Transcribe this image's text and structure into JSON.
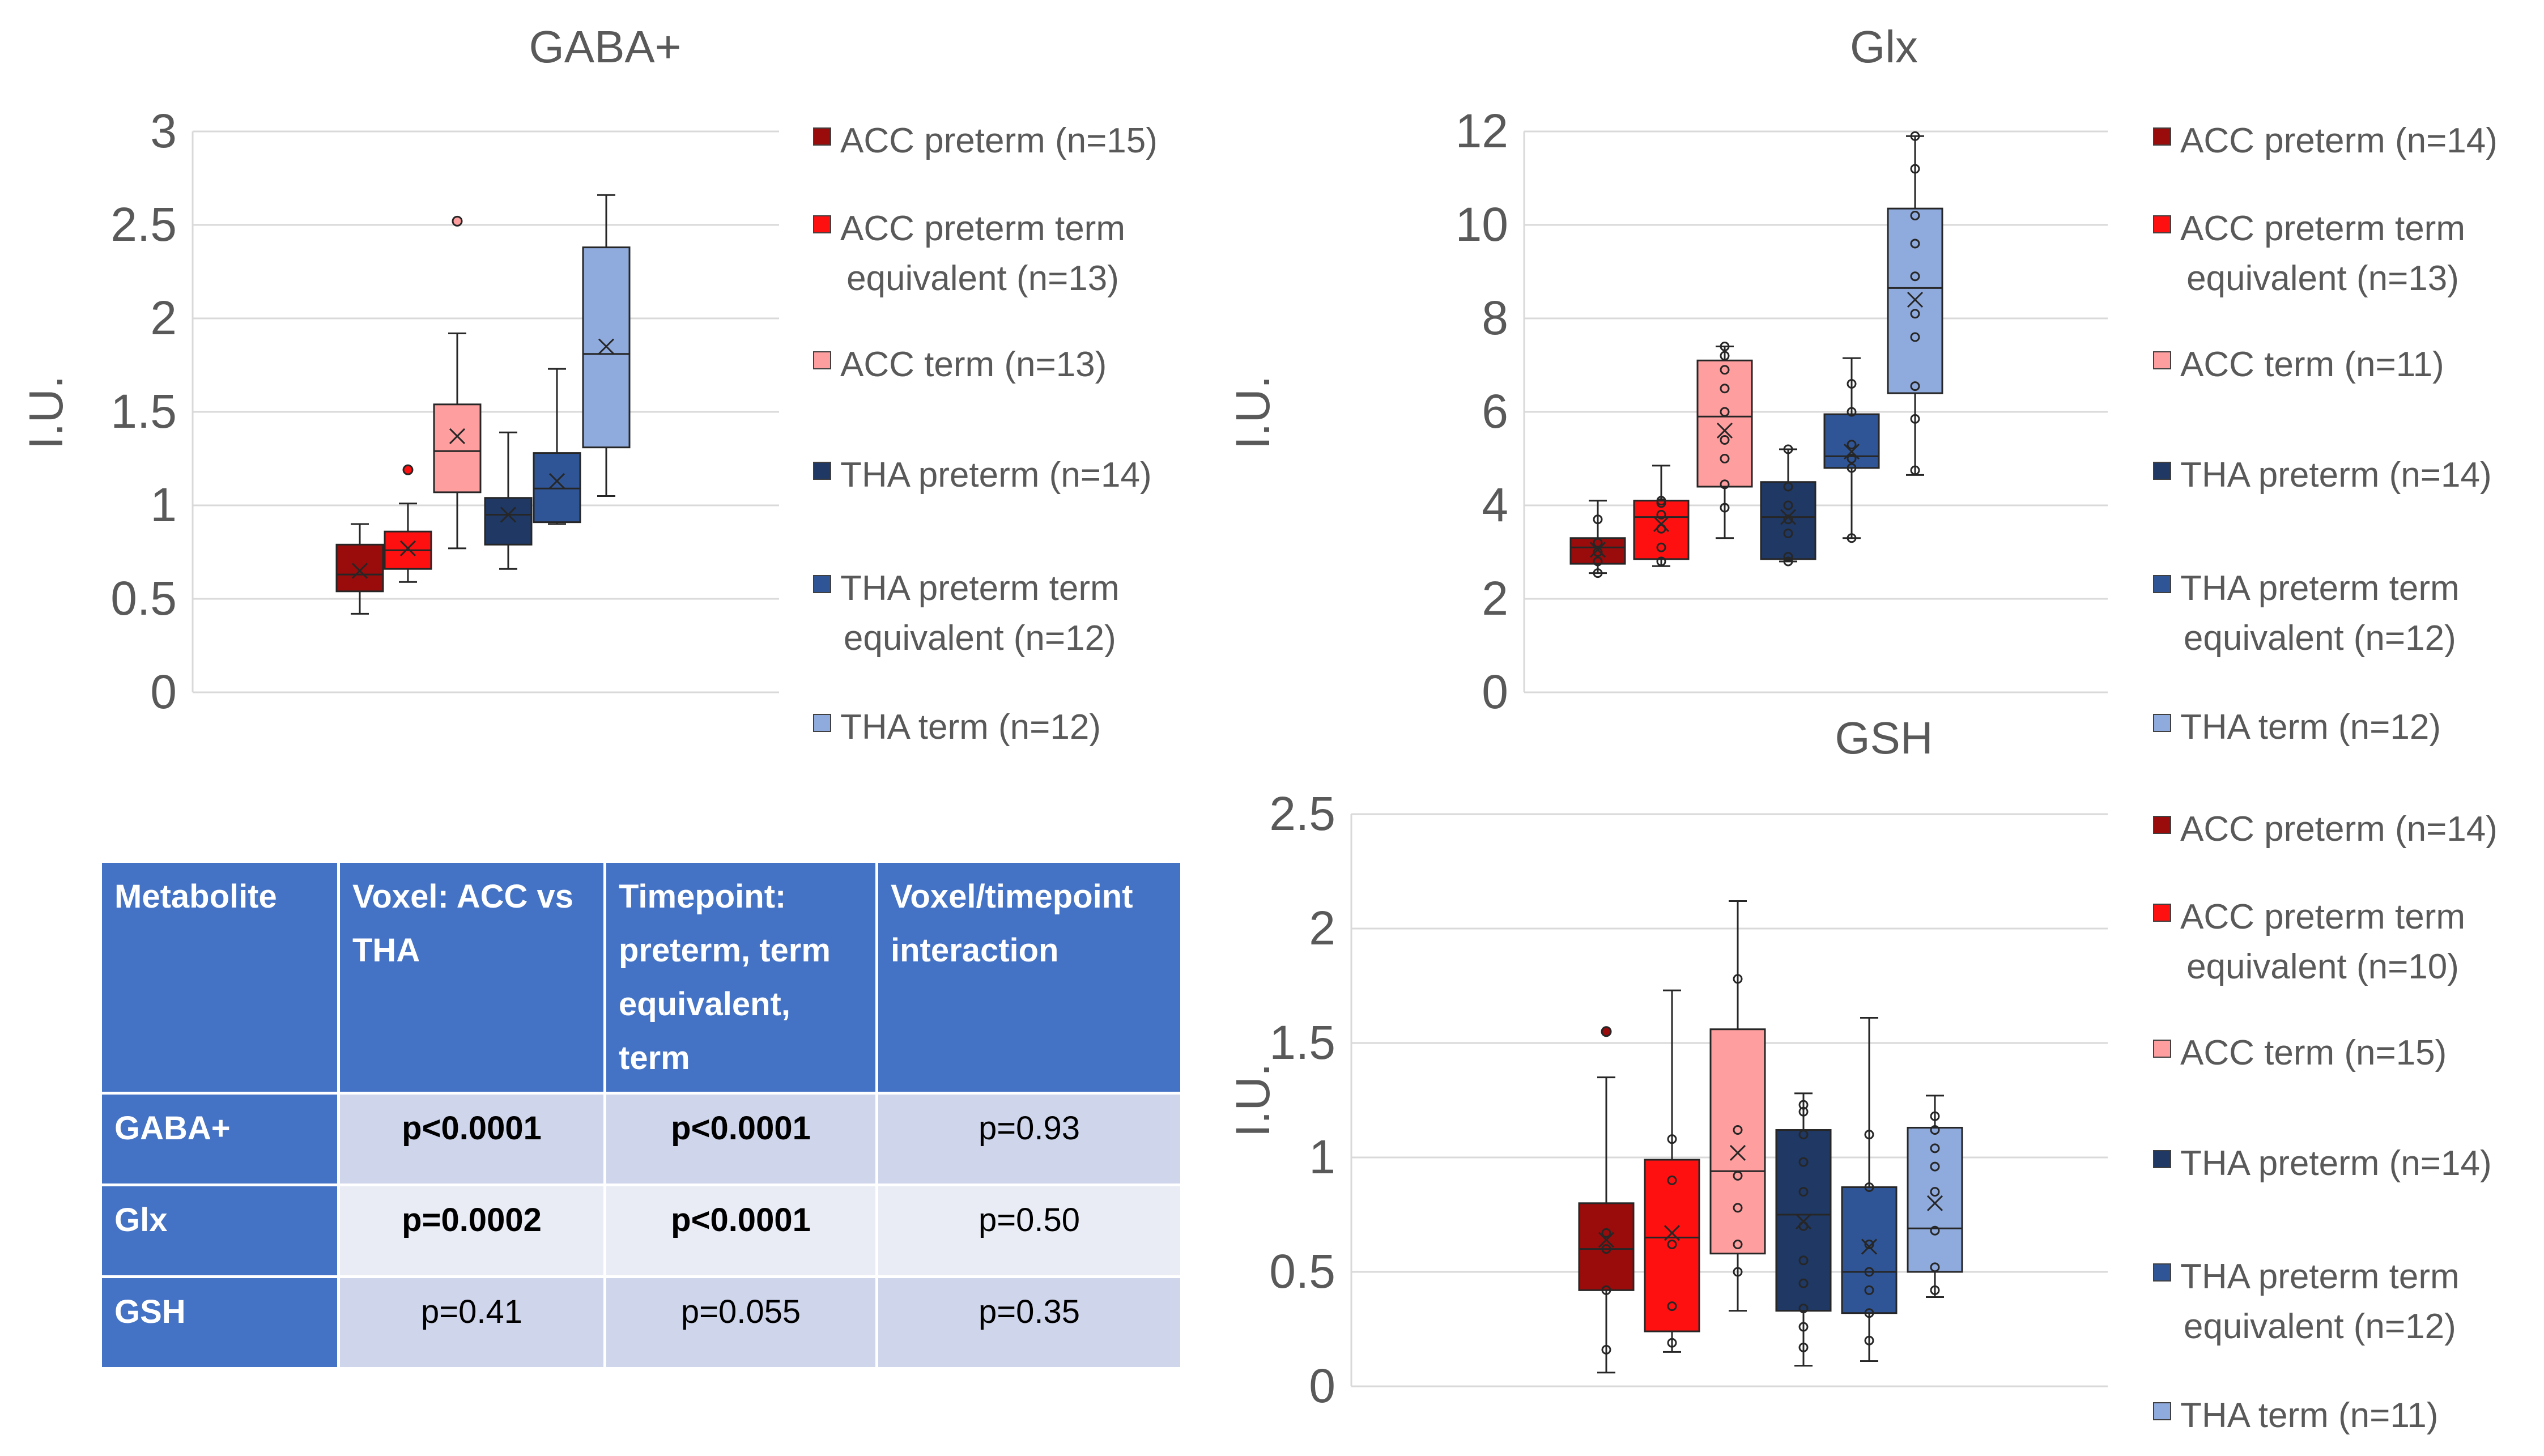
{
  "colors": {
    "acc_preterm": "#9a0b0b",
    "acc_preterm_te": "#ff1010",
    "acc_term": "#ff9e9e",
    "tha_preterm": "#1f3864",
    "tha_preterm_te": "#2f5597",
    "tha_term": "#8faadc",
    "table_header": "#4472c4",
    "table_row_odd": "#cfd5ea",
    "table_row_even": "#e9ebf5"
  },
  "chart_data": [
    {
      "id": "gaba",
      "type": "box",
      "title": "GABA+",
      "ylabel": "I.U.",
      "ylim": [
        0,
        3
      ],
      "yticks": [
        0,
        0.5,
        1,
        1.5,
        2,
        2.5,
        3
      ],
      "ytick_labels": [
        "0",
        "0.5",
        "1",
        "1.5",
        "2",
        "2.5",
        "3"
      ],
      "series": [
        {
          "name": "ACC preterm (n=15)",
          "color_key": "acc_preterm",
          "min": 0.42,
          "q1": 0.54,
          "median": 0.63,
          "q3": 0.79,
          "max": 0.9,
          "mean": 0.65,
          "outliers": [],
          "points": []
        },
        {
          "name": "ACC preterm term\nequivalent (n=13)",
          "color_key": "acc_preterm_te",
          "min": 0.59,
          "q1": 0.66,
          "median": 0.76,
          "q3": 0.86,
          "max": 1.01,
          "mean": 0.77,
          "outliers": [
            1.19
          ],
          "points": []
        },
        {
          "name": "ACC term (n=13)",
          "color_key": "acc_term",
          "min": 0.77,
          "q1": 1.07,
          "median": 1.29,
          "q3": 1.54,
          "max": 1.92,
          "mean": 1.37,
          "outliers": [
            2.52
          ],
          "points": []
        },
        {
          "name": "THA preterm (n=14)",
          "color_key": "tha_preterm",
          "min": 0.66,
          "q1": 0.79,
          "median": 0.95,
          "q3": 1.04,
          "max": 1.39,
          "mean": 0.95,
          "outliers": [],
          "points": []
        },
        {
          "name": "THA preterm term\nequivalent (n=12)",
          "color_key": "tha_preterm_te",
          "min": 0.9,
          "q1": 0.91,
          "median": 1.09,
          "q3": 1.28,
          "max": 1.73,
          "mean": 1.13,
          "outliers": [],
          "points": []
        },
        {
          "name": "THA term (n=12)",
          "color_key": "tha_term",
          "min": 1.05,
          "q1": 1.31,
          "median": 1.81,
          "q3": 2.38,
          "max": 2.66,
          "mean": 1.85,
          "outliers": [],
          "points": []
        }
      ]
    },
    {
      "id": "glx",
      "type": "box",
      "title": "Glx",
      "ylabel": "I.U.",
      "ylim": [
        0,
        12
      ],
      "yticks": [
        0,
        2,
        4,
        6,
        8,
        10,
        12
      ],
      "ytick_labels": [
        "0",
        "2",
        "4",
        "6",
        "8",
        "10",
        "12"
      ],
      "series": [
        {
          "name": "ACC preterm (n=14)",
          "color_key": "acc_preterm",
          "min": 2.55,
          "q1": 2.75,
          "median": 3.1,
          "q3": 3.3,
          "max": 4.1,
          "mean": 3.05,
          "outliers": [],
          "points": [
            2.55,
            2.8,
            3.0,
            3.2,
            3.7
          ]
        },
        {
          "name": "ACC preterm term\nequivalent (n=13)",
          "color_key": "acc_preterm_te",
          "min": 2.7,
          "q1": 2.85,
          "median": 3.75,
          "q3": 4.1,
          "max": 4.85,
          "mean": 3.6,
          "outliers": [],
          "points": [
            2.8,
            3.1,
            3.5,
            3.8,
            4.05,
            4.1
          ]
        },
        {
          "name": "ACC term (n=11)",
          "color_key": "acc_term",
          "min": 3.3,
          "q1": 4.4,
          "median": 5.9,
          "q3": 7.1,
          "max": 7.4,
          "mean": 5.6,
          "outliers": [],
          "points": [
            3.95,
            4.45,
            5.0,
            5.4,
            6.0,
            6.5,
            6.9,
            7.2,
            7.4
          ]
        },
        {
          "name": "THA preterm (n=14)",
          "color_key": "tha_preterm",
          "min": 2.8,
          "q1": 2.85,
          "median": 3.75,
          "q3": 4.5,
          "max": 5.2,
          "mean": 3.75,
          "outliers": [],
          "points": [
            2.8,
            2.9,
            3.4,
            3.7,
            4.0,
            4.4,
            5.2
          ]
        },
        {
          "name": "THA preterm term\nequivalent (n=12)",
          "color_key": "tha_preterm_te",
          "min": 3.3,
          "q1": 4.8,
          "median": 5.05,
          "q3": 5.95,
          "max": 7.15,
          "mean": 5.15,
          "outliers": [],
          "points": [
            3.3,
            4.8,
            5.0,
            5.3,
            6.0,
            6.6
          ]
        },
        {
          "name": "THA term (n=12)",
          "color_key": "tha_term",
          "min": 4.65,
          "q1": 6.4,
          "median": 8.65,
          "q3": 10.35,
          "max": 11.9,
          "mean": 8.4,
          "outliers": [],
          "points": [
            4.75,
            5.85,
            6.55,
            7.6,
            8.1,
            8.9,
            9.6,
            10.2,
            11.2,
            11.9
          ]
        }
      ]
    },
    {
      "id": "gsh",
      "type": "box",
      "title": "GSH",
      "ylabel": "I.U.",
      "ylim": [
        0,
        2.5
      ],
      "yticks": [
        0,
        0.5,
        1,
        1.5,
        2,
        2.5
      ],
      "ytick_labels": [
        "0",
        "0.5",
        "1",
        "1.5",
        "2",
        "2.5"
      ],
      "series": [
        {
          "name": "ACC preterm (n=14)",
          "color_key": "acc_preterm",
          "min": 0.06,
          "q1": 0.42,
          "median": 0.6,
          "q3": 0.8,
          "max": 1.35,
          "mean": 0.64,
          "outliers": [
            1.55
          ],
          "points": [
            0.16,
            0.42,
            0.6,
            0.67
          ]
        },
        {
          "name": "ACC preterm term\nequivalent (n=10)",
          "color_key": "acc_preterm_te",
          "min": 0.15,
          "q1": 0.24,
          "median": 0.65,
          "q3": 0.99,
          "max": 1.73,
          "mean": 0.67,
          "outliers": [],
          "points": [
            0.19,
            0.35,
            0.62,
            0.9,
            1.08
          ]
        },
        {
          "name": "ACC term (n=15)",
          "color_key": "acc_term",
          "min": 0.33,
          "q1": 0.58,
          "median": 0.94,
          "q3": 1.56,
          "max": 2.12,
          "mean": 1.02,
          "outliers": [],
          "points": [
            0.5,
            0.62,
            0.78,
            0.92,
            1.12,
            1.78
          ]
        },
        {
          "name": "THA preterm (n=14)",
          "color_key": "tha_preterm",
          "min": 0.09,
          "q1": 0.33,
          "median": 0.75,
          "q3": 1.12,
          "max": 1.28,
          "mean": 0.72,
          "outliers": [],
          "points": [
            0.17,
            0.26,
            0.34,
            0.45,
            0.55,
            0.7,
            0.85,
            0.98,
            1.1,
            1.2,
            1.23
          ]
        },
        {
          "name": "THA preterm term\nequivalent (n=12)",
          "color_key": "tha_preterm_te",
          "min": 0.11,
          "q1": 0.32,
          "median": 0.5,
          "q3": 0.87,
          "max": 1.61,
          "mean": 0.61,
          "outliers": [],
          "points": [
            0.2,
            0.32,
            0.42,
            0.5,
            0.62,
            0.87,
            1.1
          ]
        },
        {
          "name": "THA term (n=11)",
          "color_key": "tha_term",
          "min": 0.39,
          "q1": 0.5,
          "median": 0.69,
          "q3": 1.13,
          "max": 1.27,
          "mean": 0.8,
          "outliers": [],
          "points": [
            0.42,
            0.52,
            0.68,
            0.85,
            0.96,
            1.04,
            1.12,
            1.18
          ]
        }
      ]
    }
  ],
  "table": {
    "headers": [
      "Metabolite",
      "Voxel: ACC vs\nTHA",
      "Timepoint:\npreterm, term\nequivalent,\nterm",
      "Voxel/timepoint\ninteraction"
    ],
    "rows": [
      {
        "label": "GABA+",
        "cells": [
          "p<0.0001",
          "p<0.0001",
          "p=0.93"
        ],
        "bold": [
          true,
          true,
          false
        ]
      },
      {
        "label": "Glx",
        "cells": [
          "p=0.0002",
          "p<0.0001",
          "p=0.50"
        ],
        "bold": [
          true,
          true,
          false
        ]
      },
      {
        "label": "GSH",
        "cells": [
          "p=0.41",
          "p=0.055",
          "p=0.35"
        ],
        "bold": [
          false,
          false,
          false
        ]
      }
    ]
  }
}
